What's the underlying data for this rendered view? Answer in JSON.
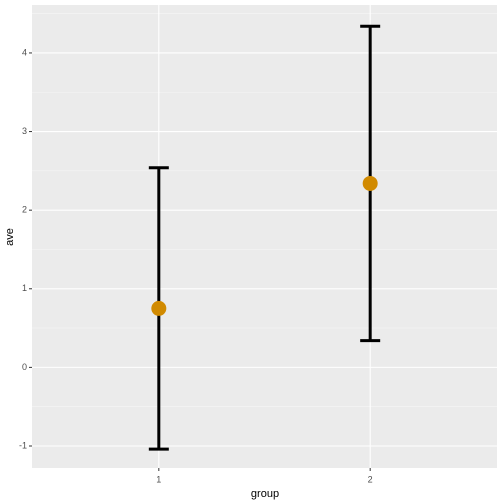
{
  "chart_data": {
    "type": "errorbar",
    "x_label": "group",
    "y_label": "ave",
    "categories": [
      "1",
      "2"
    ],
    "values": [
      0.75,
      2.34
    ],
    "errors": [
      1.79,
      2.0
    ],
    "color": "#d18a00",
    "ylim": [
      -1.28,
      4.61
    ],
    "yticks": [
      -1,
      0,
      1,
      2,
      3,
      4
    ],
    "minor_yticks": [
      -0.5,
      0.5,
      1.5,
      2.5,
      3.5,
      4.5
    ],
    "grid": true
  }
}
